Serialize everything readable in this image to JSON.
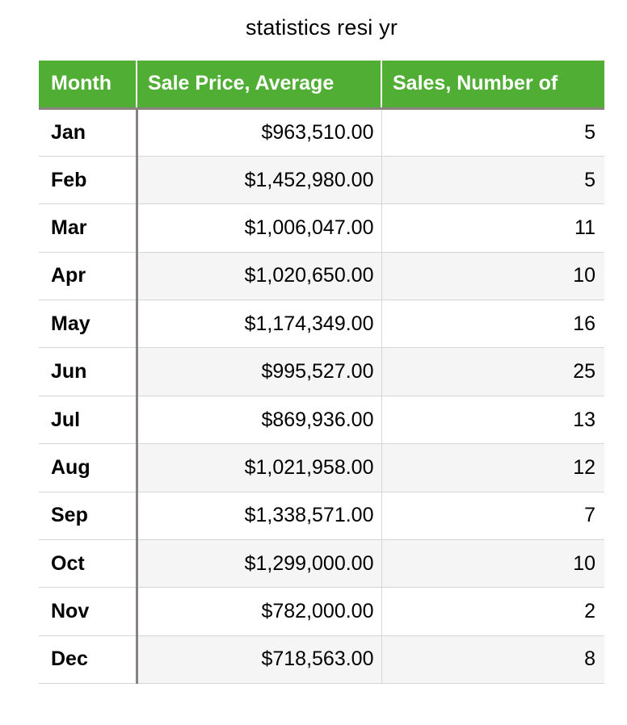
{
  "title": "statistics resi yr",
  "table": {
    "columns": [
      "Month",
      "Sale Price, Average",
      "Sales, Number of"
    ],
    "rows": [
      {
        "month": "Jan",
        "avg_price": "$963,510.00",
        "num_sales": "5"
      },
      {
        "month": "Feb",
        "avg_price": "$1,452,980.00",
        "num_sales": "5"
      },
      {
        "month": "Mar",
        "avg_price": "$1,006,047.00",
        "num_sales": "11"
      },
      {
        "month": "Apr",
        "avg_price": "$1,020,650.00",
        "num_sales": "10"
      },
      {
        "month": "May",
        "avg_price": "$1,174,349.00",
        "num_sales": "16"
      },
      {
        "month": "Jun",
        "avg_price": "$995,527.00",
        "num_sales": "25"
      },
      {
        "month": "Jul",
        "avg_price": "$869,936.00",
        "num_sales": "13"
      },
      {
        "month": "Aug",
        "avg_price": "$1,021,958.00",
        "num_sales": "12"
      },
      {
        "month": "Sep",
        "avg_price": "$1,338,571.00",
        "num_sales": "7"
      },
      {
        "month": "Oct",
        "avg_price": "$1,299,000.00",
        "num_sales": "10"
      },
      {
        "month": "Nov",
        "avg_price": "$782,000.00",
        "num_sales": "2"
      },
      {
        "month": "Dec",
        "avg_price": "$718,563.00",
        "num_sales": "8"
      }
    ]
  },
  "colors": {
    "header_bg": "#4fae33",
    "header_text": "#ffffff",
    "stripe_bg": "#f5f5f6",
    "border_light": "#d6d6d6",
    "border_dark": "#88837f",
    "text": "#000000",
    "page_bg": "#ffffff"
  },
  "chart_data": {
    "type": "table",
    "title": "statistics resi yr",
    "columns": [
      "Month",
      "Sale Price, Average",
      "Sales, Number of"
    ],
    "months": [
      "Jan",
      "Feb",
      "Mar",
      "Apr",
      "May",
      "Jun",
      "Jul",
      "Aug",
      "Sep",
      "Oct",
      "Nov",
      "Dec"
    ],
    "avg_sale_price": [
      963510.0,
      1452980.0,
      1006047.0,
      1020650.0,
      1174349.0,
      995527.0,
      869936.0,
      1021958.0,
      1338571.0,
      1299000.0,
      782000.0,
      718563.0
    ],
    "num_sales": [
      5,
      5,
      11,
      10,
      16,
      25,
      13,
      12,
      7,
      10,
      2,
      8
    ]
  }
}
